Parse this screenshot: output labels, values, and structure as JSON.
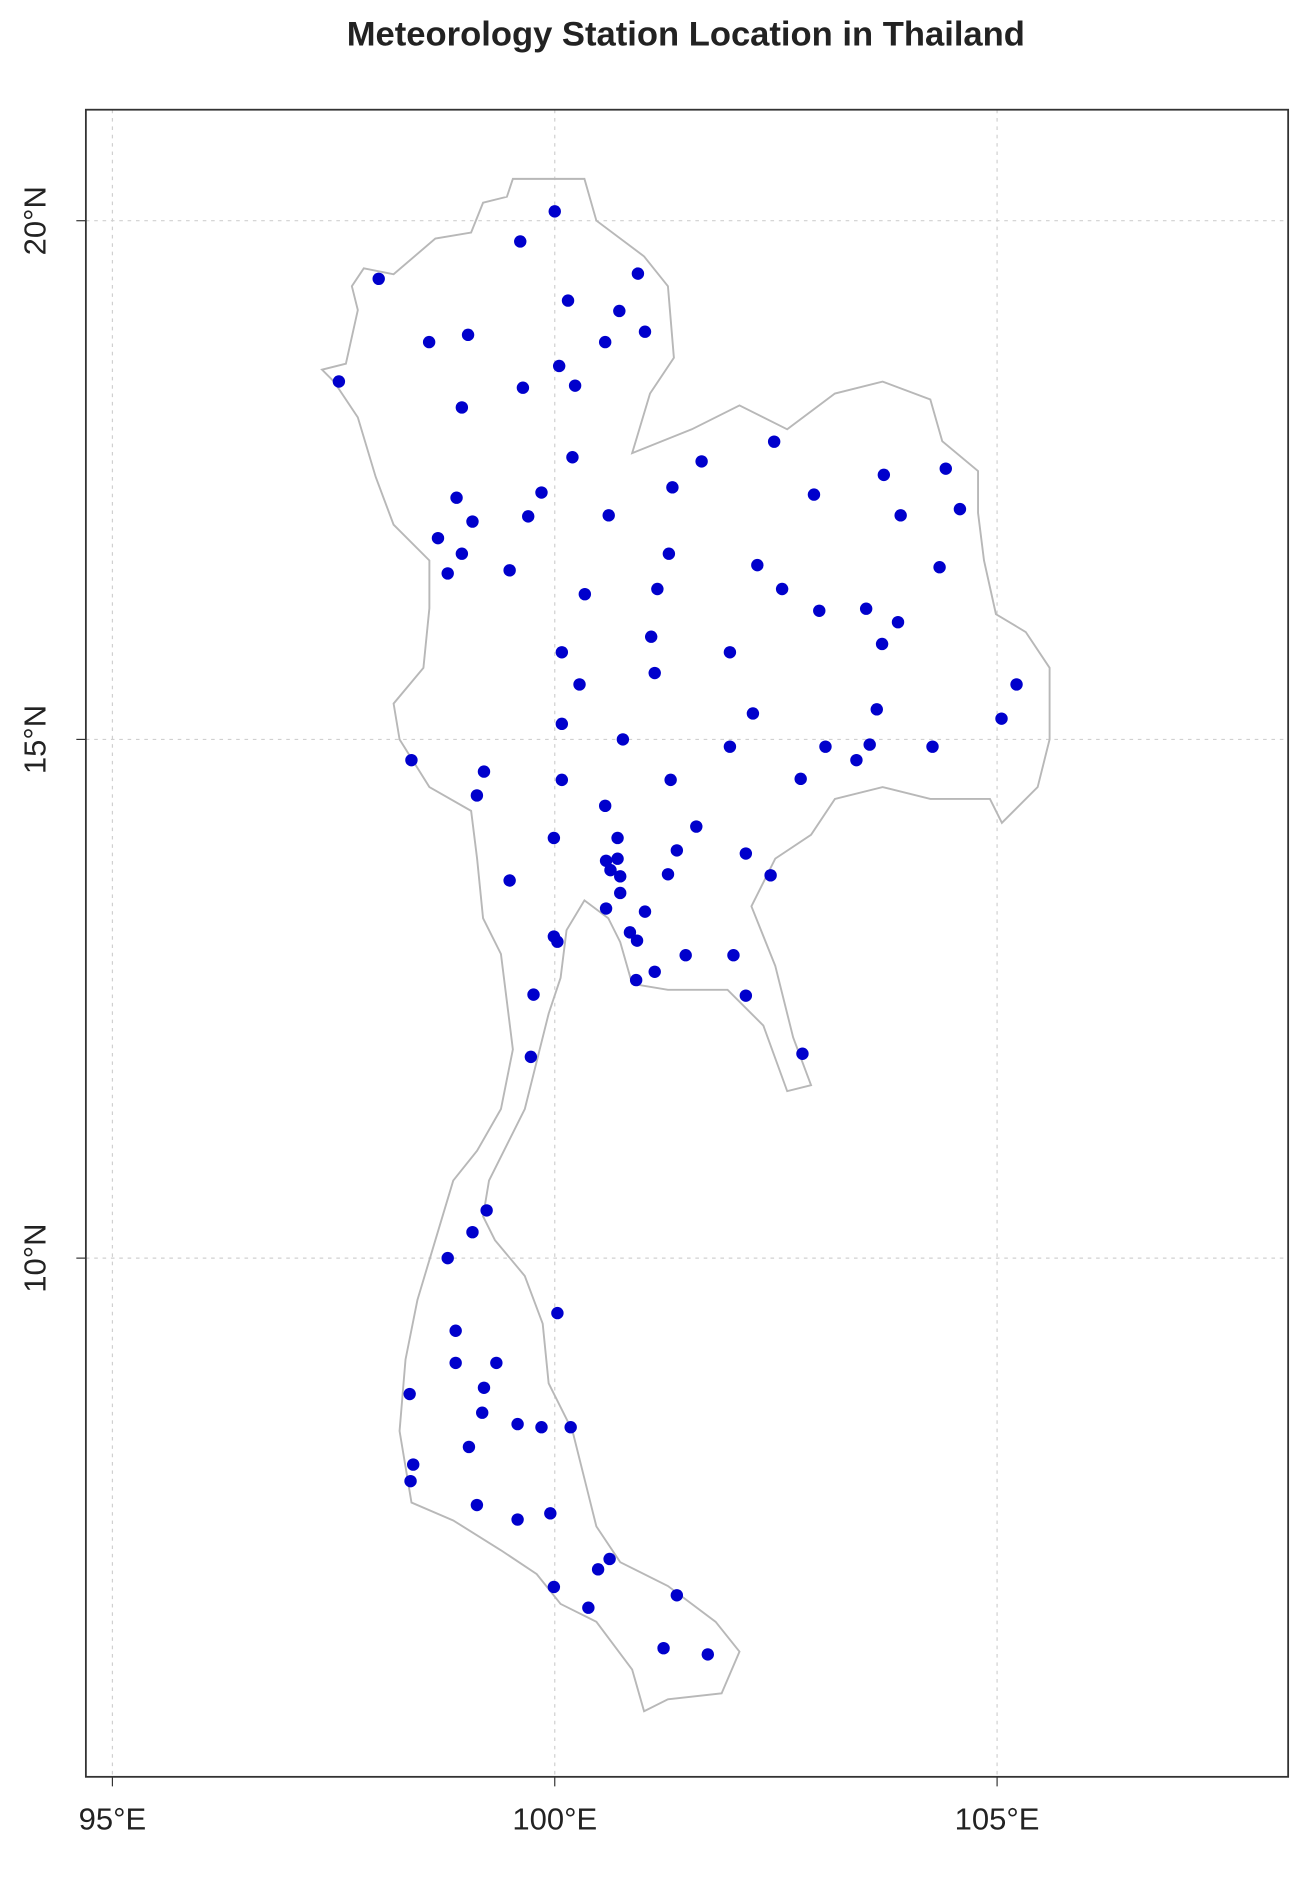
{
  "chart_data": {
    "type": "scatter",
    "title": "Meteorology Station Location in Thailand",
    "xlim": [
      94.7,
      108.29
    ],
    "ylim": [
      5.0,
      21.07
    ],
    "xticks": [
      {
        "value": 95,
        "label": "95°E"
      },
      {
        "value": 100,
        "label": "100°E"
      },
      {
        "value": 105,
        "label": "105°E"
      }
    ],
    "yticks": [
      {
        "value": 10,
        "label": "10°N"
      },
      {
        "value": 15,
        "label": "15°N"
      },
      {
        "value": 20,
        "label": "20°N"
      }
    ],
    "grid": true,
    "color": "#0000cc",
    "x": [
      100.0,
      99.61,
      98.01,
      100.15,
      100.94,
      100.73,
      101.02,
      100.57,
      99.02,
      98.58,
      100.05,
      99.64,
      100.23,
      97.56,
      98.95,
      102.48,
      101.66,
      100.2,
      103.72,
      104.42,
      102.93,
      101.33,
      98.89,
      99.85,
      104.58,
      103.91,
      100.61,
      99.7,
      99.07,
      98.68,
      98.95,
      101.29,
      102.29,
      104.35,
      99.49,
      98.79,
      102.57,
      101.16,
      100.34,
      103.52,
      102.99,
      103.88,
      101.09,
      103.7,
      101.98,
      100.08,
      101.13,
      105.22,
      100.28,
      105.05,
      102.24,
      103.64,
      100.08,
      100.77,
      101.98,
      103.06,
      103.56,
      104.27,
      98.38,
      103.41,
      99.2,
      101.31,
      100.08,
      102.78,
      99.12,
      100.57,
      101.6,
      99.99,
      100.71,
      101.38,
      102.16,
      100.58,
      100.71,
      100.63,
      100.74,
      101.28,
      102.44,
      99.49,
      100.74,
      100.58,
      101.02,
      99.99,
      100.03,
      100.85,
      100.93,
      101.48,
      102.02,
      101.13,
      100.92,
      99.76,
      102.16,
      99.73,
      102.8,
      99.23,
      99.07,
      98.79,
      100.03,
      98.88,
      98.88,
      99.34,
      99.2,
      98.36,
      99.18,
      99.58,
      99.85,
      100.18,
      99.03,
      98.4,
      98.37,
      99.12,
      99.95,
      99.58,
      100.62,
      100.49,
      99.99,
      101.38,
      100.38,
      101.23,
      101.73
    ],
    "values": [
      20.09,
      19.8,
      19.44,
      19.23,
      19.49,
      19.13,
      18.93,
      18.83,
      18.9,
      18.83,
      18.6,
      18.39,
      18.41,
      18.45,
      18.2,
      17.87,
      17.68,
      17.72,
      17.55,
      17.61,
      17.36,
      17.43,
      17.33,
      17.38,
      17.22,
      17.16,
      17.16,
      17.15,
      17.1,
      16.94,
      16.79,
      16.79,
      16.68,
      16.66,
      16.63,
      16.6,
      16.45,
      16.45,
      16.4,
      16.26,
      16.24,
      16.13,
      15.99,
      15.92,
      15.84,
      15.84,
      15.64,
      15.53,
      15.53,
      15.2,
      15.25,
      15.29,
      15.15,
      15.0,
      14.93,
      14.93,
      14.95,
      14.93,
      14.8,
      14.8,
      14.69,
      14.61,
      14.61,
      14.62,
      14.46,
      14.36,
      14.16,
      14.05,
      14.05,
      13.93,
      13.9,
      13.83,
      13.85,
      13.74,
      13.68,
      13.7,
      13.69,
      13.64,
      13.52,
      13.37,
      13.34,
      13.1,
      13.05,
      13.14,
      13.06,
      12.92,
      12.92,
      12.76,
      12.68,
      12.54,
      12.53,
      11.94,
      11.97,
      10.46,
      10.25,
      10.0,
      9.47,
      9.3,
      8.99,
      8.99,
      8.75,
      8.69,
      8.51,
      8.4,
      8.37,
      8.37,
      8.18,
      8.01,
      7.85,
      7.62,
      7.54,
      7.48,
      7.1,
      7.0,
      6.83,
      6.75,
      6.63,
      6.24,
      6.18
    ]
  }
}
